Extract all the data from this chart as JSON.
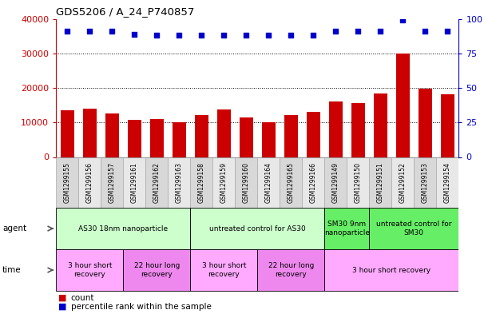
{
  "title": "GDS5206 / A_24_P740857",
  "samples": [
    "GSM1299155",
    "GSM1299156",
    "GSM1299157",
    "GSM1299161",
    "GSM1299162",
    "GSM1299163",
    "GSM1299158",
    "GSM1299159",
    "GSM1299160",
    "GSM1299164",
    "GSM1299165",
    "GSM1299166",
    "GSM1299149",
    "GSM1299150",
    "GSM1299151",
    "GSM1299152",
    "GSM1299153",
    "GSM1299154"
  ],
  "counts": [
    13500,
    14000,
    12700,
    10800,
    11000,
    10000,
    12200,
    13700,
    11400,
    10000,
    12200,
    13000,
    16000,
    15500,
    18500,
    30000,
    19800,
    18200
  ],
  "percentiles": [
    91,
    91,
    91,
    89,
    88,
    88,
    88,
    88,
    88,
    88,
    88,
    88,
    91,
    91,
    91,
    99,
    91,
    91
  ],
  "bar_color": "#cc0000",
  "dot_color": "#0000cc",
  "ylim_left": [
    0,
    40000
  ],
  "ylim_right": [
    0,
    100
  ],
  "yticks_left": [
    0,
    10000,
    20000,
    30000,
    40000
  ],
  "yticks_right": [
    0,
    25,
    50,
    75,
    100
  ],
  "grid_values": [
    10000,
    20000,
    30000
  ],
  "agent_groups": [
    {
      "label": "AS30 18nm nanoparticle",
      "start": 0,
      "end": 6,
      "color": "#ccffcc"
    },
    {
      "label": "untreated control for AS30",
      "start": 6,
      "end": 12,
      "color": "#ccffcc"
    },
    {
      "label": "SM30 9nm\nnanoparticle",
      "start": 12,
      "end": 14,
      "color": "#66ee66"
    },
    {
      "label": "untreated control for\nSM30",
      "start": 14,
      "end": 18,
      "color": "#66ee66"
    }
  ],
  "time_groups": [
    {
      "label": "3 hour short\nrecovery",
      "start": 0,
      "end": 3,
      "color": "#ffaaff"
    },
    {
      "label": "22 hour long\nrecovery",
      "start": 3,
      "end": 6,
      "color": "#ee88ee"
    },
    {
      "label": "3 hour short\nrecovery",
      "start": 6,
      "end": 9,
      "color": "#ffaaff"
    },
    {
      "label": "22 hour long\nrecovery",
      "start": 9,
      "end": 12,
      "color": "#ee88ee"
    },
    {
      "label": "3 hour short recovery",
      "start": 12,
      "end": 18,
      "color": "#ffaaff"
    }
  ],
  "legend_count_color": "#cc0000",
  "legend_dot_color": "#0000cc",
  "background_color": "#ffffff"
}
